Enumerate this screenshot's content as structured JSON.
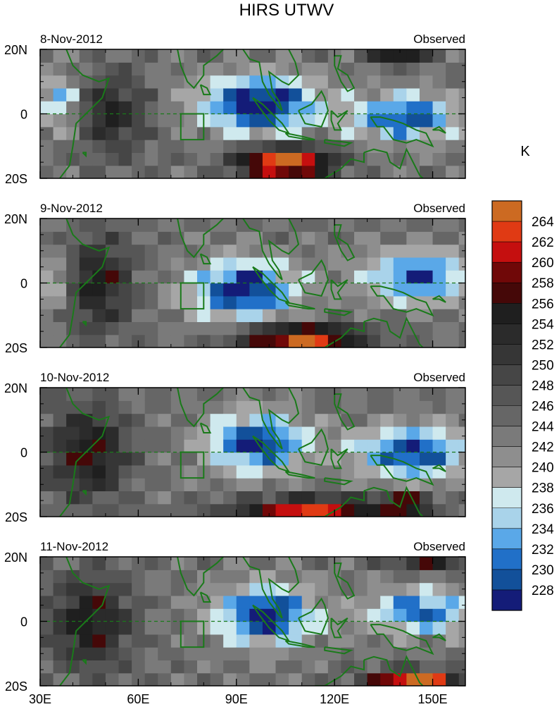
{
  "title": "HIRS UTWV",
  "unit_label": "K",
  "colors": {
    "land_outline": "#1a7a1a",
    "box_outline": "#1a7a1a",
    "equator_line": "#1a7a1a"
  },
  "chart_data": {
    "type": "heatmap",
    "title": "HIRS UTWV",
    "x_ticks": [
      "30E",
      "60E",
      "90E",
      "120E",
      "150E"
    ],
    "x_tick_values": [
      30,
      60,
      90,
      120,
      150
    ],
    "x_range": [
      30,
      160
    ],
    "y_ticks": [
      "20N",
      "0",
      "20S"
    ],
    "y_tick_values": [
      20,
      0,
      -20
    ],
    "y_range": [
      -20,
      20
    ],
    "study_box": {
      "lon": [
        73,
        80
      ],
      "lat": [
        -8,
        0
      ]
    },
    "colorbar": {
      "unit": "K",
      "labels": [
        "264",
        "262",
        "260",
        "258",
        "256",
        "254",
        "252",
        "250",
        "248",
        "246",
        "244",
        "242",
        "240",
        "238",
        "236",
        "234",
        "232",
        "230",
        "228"
      ],
      "levels": [
        266,
        264,
        262,
        260,
        258,
        256,
        254,
        252,
        250,
        248,
        246,
        244,
        242,
        240,
        238,
        236,
        234,
        232,
        230,
        228
      ],
      "colors": [
        "#cc6a22",
        "#e03a14",
        "#c50f0f",
        "#700808",
        "#450808",
        "#1f1f1f",
        "#2b2b2b",
        "#363636",
        "#464646",
        "#565656",
        "#666666",
        "#7a7a7a",
        "#8e8e8e",
        "#a6a6a6",
        "#cfe9ee",
        "#a9d3ea",
        "#5aa8e8",
        "#2170c8",
        "#12509a",
        "#141c78"
      ]
    },
    "panels": [
      {
        "date": "8-Nov-2012",
        "label": "Observed"
      },
      {
        "date": "9-Nov-2012",
        "label": "Observed"
      },
      {
        "date": "10-Nov-2012",
        "label": "Observed"
      },
      {
        "date": "11-Nov-2012",
        "label": "Observed"
      }
    ],
    "value_features": [
      [
        {
          "lon": 97,
          "lat": 3,
          "value": -19,
          "sx": 18,
          "sy": 9
        },
        {
          "lon": 142,
          "lat": -1,
          "value": -16,
          "sx": 16,
          "sy": 7
        },
        {
          "lon": 36,
          "lat": 4,
          "value": -9,
          "sx": 6,
          "sy": 9
        },
        {
          "lon": 105,
          "lat": -15,
          "value": 24,
          "sx": 14,
          "sy": 5
        },
        {
          "lon": 140,
          "lat": 20,
          "value": 18,
          "sx": 8,
          "sy": 4
        },
        {
          "lon": 52,
          "lat": 0,
          "value": 10,
          "sx": 10,
          "sy": 12
        }
      ],
      [
        {
          "lon": 92,
          "lat": -2,
          "value": -18,
          "sx": 16,
          "sy": 9
        },
        {
          "lon": 145,
          "lat": 2,
          "value": -15,
          "sx": 16,
          "sy": 8
        },
        {
          "lon": 34,
          "lat": 0,
          "value": -8,
          "sx": 5,
          "sy": 8
        },
        {
          "lon": 110,
          "lat": -17,
          "value": 22,
          "sx": 18,
          "sy": 4
        },
        {
          "lon": 48,
          "lat": 0,
          "value": 11,
          "sx": 10,
          "sy": 14
        }
      ],
      [
        {
          "lon": 96,
          "lat": 3,
          "value": -17,
          "sx": 15,
          "sy": 9
        },
        {
          "lon": 144,
          "lat": 0,
          "value": -16,
          "sx": 18,
          "sy": 8
        },
        {
          "lon": 112,
          "lat": -18,
          "value": 19,
          "sx": 22,
          "sy": 4
        },
        {
          "lon": 142,
          "lat": -16,
          "value": 17,
          "sx": 8,
          "sy": 3
        },
        {
          "lon": 45,
          "lat": 0,
          "value": 12,
          "sx": 12,
          "sy": 14
        }
      ],
      [
        {
          "lon": 99,
          "lat": 2,
          "value": -18,
          "sx": 15,
          "sy": 9
        },
        {
          "lon": 146,
          "lat": 3,
          "value": -14,
          "sx": 16,
          "sy": 7
        },
        {
          "lon": 145,
          "lat": -18,
          "value": 22,
          "sx": 14,
          "sy": 3
        },
        {
          "lon": 150,
          "lat": 20,
          "value": 14,
          "sx": 12,
          "sy": 4
        },
        {
          "lon": 45,
          "lat": 0,
          "value": 12,
          "sx": 12,
          "sy": 14
        }
      ]
    ]
  }
}
